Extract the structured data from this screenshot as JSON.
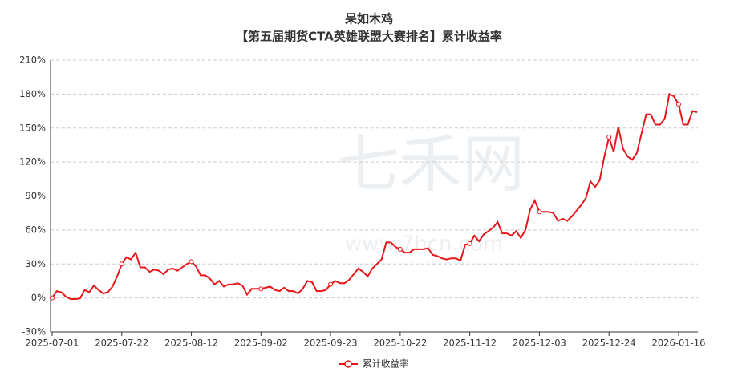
{
  "chart_data": {
    "type": "line",
    "title": "呆如木鸡",
    "subtitle": "【第五届期货CTA英雄联盟大赛排名】累计收益率",
    "watermark": "七禾网",
    "watermark_url": "www.7hcn.com",
    "categories": [
      "2025-07-01",
      null,
      null,
      null,
      null,
      null,
      null,
      null,
      null,
      null,
      null,
      null,
      null,
      null,
      null,
      "2025-07-22",
      null,
      null,
      null,
      null,
      null,
      null,
      null,
      null,
      null,
      null,
      null,
      null,
      null,
      null,
      "2025-08-12",
      null,
      null,
      null,
      null,
      null,
      null,
      null,
      null,
      null,
      null,
      null,
      null,
      null,
      null,
      "2025-09-02",
      null,
      null,
      null,
      null,
      null,
      null,
      null,
      null,
      null,
      null,
      null,
      null,
      null,
      null,
      "2025-09-23",
      null,
      null,
      null,
      null,
      null,
      null,
      null,
      null,
      null,
      null,
      null,
      null,
      null,
      null,
      "2025-10-22",
      null,
      null,
      null,
      null,
      null,
      null,
      null,
      null,
      null,
      null,
      null,
      null,
      null,
      null,
      "2025-11-12",
      null,
      null,
      null,
      null,
      null,
      null,
      null,
      null,
      null,
      null,
      null,
      null,
      null,
      null,
      "2025-12-03",
      null,
      null,
      null,
      null,
      null,
      null,
      null,
      null,
      null,
      null,
      null,
      null,
      null,
      null,
      "2025-12-24",
      null,
      null,
      null,
      null,
      null,
      null,
      null,
      null,
      null,
      null,
      null,
      null,
      null,
      null,
      "2026-01-16",
      null,
      null,
      null,
      null
    ],
    "series": [
      {
        "name": "累计收益率",
        "color": "#e8161b",
        "values": [
          0,
          6,
          5,
          1,
          -1,
          -1,
          -0.5,
          7,
          5,
          11,
          7,
          4,
          5,
          10,
          19,
          30,
          36,
          34,
          40,
          27,
          27,
          23,
          25,
          24,
          21,
          25,
          26,
          24,
          27,
          30,
          32,
          28,
          20,
          20,
          17,
          12,
          15,
          10,
          12,
          12,
          13,
          11,
          3,
          8,
          8,
          8,
          9,
          10,
          7,
          6,
          9,
          6,
          6,
          4,
          8,
          15,
          14,
          6,
          6,
          7,
          12,
          15,
          13,
          13,
          16,
          21,
          26,
          23,
          19,
          26,
          30,
          34,
          49,
          49,
          45,
          43,
          40,
          40,
          43,
          43,
          43,
          44,
          38,
          37,
          35,
          34,
          35,
          35,
          33,
          47,
          48,
          55,
          50,
          56,
          59,
          62,
          67,
          57,
          57,
          55,
          59,
          53,
          60,
          78,
          86,
          76,
          76,
          76,
          75,
          68,
          70,
          68,
          72,
          77,
          82,
          88,
          103,
          98,
          104,
          125,
          142,
          129,
          151,
          132,
          125,
          122,
          128,
          145,
          162,
          162,
          153,
          153,
          158,
          180,
          178,
          171,
          153,
          153,
          165,
          164
        ]
      }
    ],
    "ylim": [
      -30,
      210
    ],
    "yticks": [
      {
        "value": -30,
        "label": "-30%"
      },
      {
        "value": 0,
        "label": "0%"
      },
      {
        "value": 30,
        "label": "30%"
      },
      {
        "value": 60,
        "label": "60%"
      },
      {
        "value": 90,
        "label": "90%"
      },
      {
        "value": 120,
        "label": "120%"
      },
      {
        "value": 150,
        "label": "150%"
      },
      {
        "value": 180,
        "label": "180%"
      },
      {
        "value": 210,
        "label": "210%"
      }
    ],
    "grid": true
  }
}
